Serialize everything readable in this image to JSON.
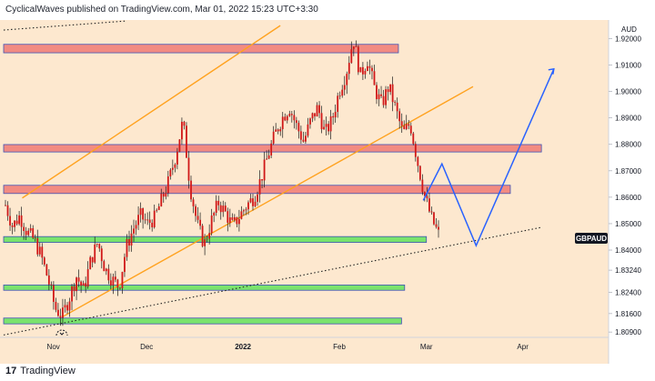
{
  "header": {
    "publish_line": "CyclicalWaves published on TradingView.com, Mar 01, 2022 15:23 UTC+3:30"
  },
  "footer": {
    "logo_text": "17",
    "brand_label": "TradingView"
  },
  "colors": {
    "chart_bg": "#fde8cf",
    "price_axis_bg": "#ffffff",
    "candle": "#d01818",
    "wick": "#1a1a1a",
    "resistance_zone": "#f28b82",
    "support_zone": "#7ae36d",
    "channel_line": "#ffa21f",
    "projection_line": "#2962ff",
    "trend_dots": "#222222",
    "symbol_badge": "#131722"
  },
  "chart_data": {
    "type": "candlestick",
    "symbol": "GBPAUD",
    "currency": "AUD",
    "y_axis_ticks": [
      "1.92000",
      "1.91000",
      "1.90000",
      "1.89000",
      "1.88000",
      "1.87000",
      "1.86000",
      "1.85000",
      "1.84000",
      "1.83240",
      "1.82400",
      "1.81600",
      "1.80900"
    ],
    "ylim": [
      1.807,
      1.927
    ],
    "x_axis_ticks": [
      "Nov",
      "Dec",
      "2022",
      "Feb",
      "Mar",
      "Apr"
    ],
    "price_path": [
      1.857,
      1.849,
      1.853,
      1.847,
      1.844,
      1.838,
      1.829,
      1.818,
      1.815,
      1.822,
      1.83,
      1.825,
      1.836,
      1.843,
      1.833,
      1.829,
      1.826,
      1.841,
      1.848,
      1.853,
      1.85,
      1.852,
      1.859,
      1.866,
      1.876,
      1.889,
      1.864,
      1.85,
      1.842,
      1.851,
      1.858,
      1.854,
      1.849,
      1.853,
      1.857,
      1.86,
      1.867,
      1.876,
      1.884,
      1.89,
      1.894,
      1.887,
      1.881,
      1.889,
      1.894,
      1.884,
      1.889,
      1.9,
      1.907,
      1.92,
      1.906,
      1.912,
      1.901,
      1.895,
      1.902,
      1.893,
      1.884,
      1.888,
      1.874,
      1.861,
      1.852,
      1.846
    ],
    "resistance_zones": [
      {
        "from": 1.9146,
        "to": 1.9178,
        "x_from": "Oct 16",
        "x_to": "Feb 20"
      },
      {
        "from": 1.8771,
        "to": 1.8799,
        "x_from": "Oct 16",
        "x_to": "Apr 07"
      },
      {
        "from": 1.8614,
        "to": 1.8645,
        "x_from": "Oct 16",
        "x_to": "Mar 28"
      }
    ],
    "support_zones": [
      {
        "from": 1.8429,
        "to": 1.8451,
        "x_from": "Oct 16",
        "x_to": "Mar 01"
      },
      {
        "from": 1.8248,
        "to": 1.8268,
        "x_from": "Oct 16",
        "x_to": "Feb 22"
      },
      {
        "from": 1.8121,
        "to": 1.8143,
        "x_from": "Oct 16",
        "x_to": "Feb 21"
      }
    ],
    "channel_upper": [
      {
        "x": "Oct 22",
        "y": 1.8597
      },
      {
        "x": "Jan 13",
        "y": 1.9249
      }
    ],
    "channel_lower": [
      {
        "x": "Nov 04",
        "y": 1.8148
      },
      {
        "x": "Mar 16",
        "y": 1.9018
      }
    ],
    "trendline_dotted": [
      {
        "points": [
          {
            "x": "Oct 16",
            "y": 1.9232
          },
          {
            "x": "Nov 24",
            "y": 1.9266
          }
        ]
      },
      {
        "points": [
          {
            "x": "Oct 16",
            "y": 1.8079
          },
          {
            "x": "Apr 07",
            "y": 1.8486
          }
        ]
      }
    ],
    "projection_path": [
      {
        "x": "Feb 28",
        "y": 1.8588
      },
      {
        "x": "Mar 06",
        "y": 1.8726
      },
      {
        "x": "Mar 17",
        "y": 1.8417
      },
      {
        "x": "Apr 11",
        "y": 1.9085
      }
    ],
    "price_label": "GBPAUD"
  }
}
